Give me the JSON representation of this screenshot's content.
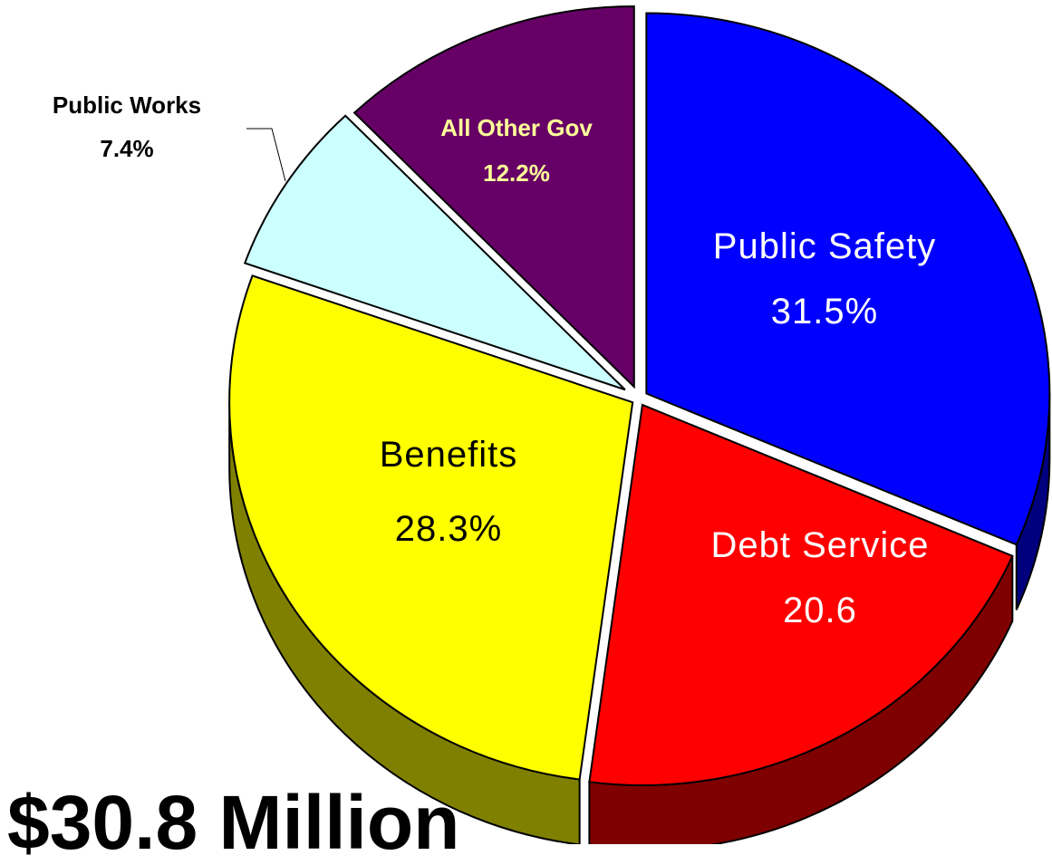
{
  "chart_data": {
    "type": "pie",
    "style": "3d-exploded",
    "slices": [
      {
        "label": "Public Safety",
        "value": 31.5,
        "value_text": "31.5%",
        "color": "#0000FF",
        "side_color": "#00007F",
        "label_color": "#FFFFFF",
        "label_style": "regular"
      },
      {
        "label": "Debt Service",
        "value": 20.6,
        "value_text": "20.6",
        "color": "#FF0000",
        "side_color": "#7F0000",
        "label_color": "#FFFFFF",
        "label_style": "regular"
      },
      {
        "label": "Benefits",
        "value": 28.3,
        "value_text": "28.3%",
        "color": "#FFFF00",
        "side_color": "#808000",
        "label_color": "#000000",
        "label_style": "regular"
      },
      {
        "label": "Public Works",
        "value": 7.4,
        "value_text": "7.4%",
        "color": "#CCFFFF",
        "side_color": "#6D9090",
        "label_color": "#000000",
        "label_style": "bold"
      },
      {
        "label": "All Other Gov",
        "value": 12.2,
        "value_text": "12.2%",
        "color": "#660066",
        "side_color": "#330033",
        "label_color": "#FFFF99",
        "label_style": "bold"
      }
    ]
  },
  "caption": {
    "text": "$30.8 Million"
  }
}
